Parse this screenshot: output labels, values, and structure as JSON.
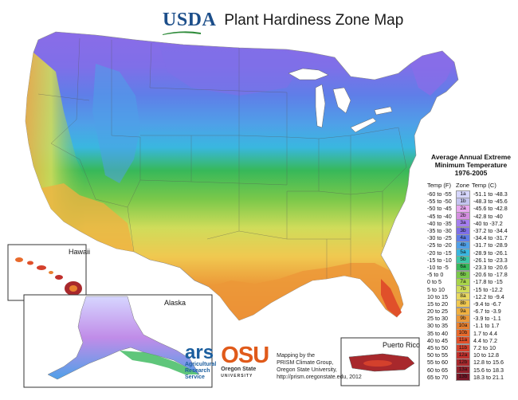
{
  "header": {
    "logo_text": "USDA",
    "title": "Plant Hardiness Zone Map"
  },
  "legend": {
    "title_line1": "Average Annual Extreme",
    "title_line2": "Minimum Temperature",
    "title_line3": "1976-2005",
    "col_f": "Temp (F)",
    "col_zone": "Zone",
    "col_c": "Temp (C)",
    "rows": [
      {
        "f": "-60 to -55",
        "zone": "1a",
        "c": "-51.1 to -48.3",
        "color": "#d6d6ff"
      },
      {
        "f": "-55 to -50",
        "zone": "1b",
        "c": "-48.3 to -45.6",
        "color": "#c4c4f0"
      },
      {
        "f": "-50 to -45",
        "zone": "2a",
        "c": "-45.6 to -42.8",
        "color": "#e8a8f0"
      },
      {
        "f": "-45 to -40",
        "zone": "2b",
        "c": "-42.8 to -40",
        "color": "#d48ee0"
      },
      {
        "f": "-40 to -35",
        "zone": "3a",
        "c": "-40 to -37.2",
        "color": "#a57ef0"
      },
      {
        "f": "-35 to -30",
        "zone": "3b",
        "c": "-37.2 to -34.4",
        "color": "#7f6fe8"
      },
      {
        "f": "-30 to -25",
        "zone": "4a",
        "c": "-34.4 to -31.7",
        "color": "#5f7ee8"
      },
      {
        "f": "-25 to -20",
        "zone": "4b",
        "c": "-31.7 to -28.9",
        "color": "#4fa0e8"
      },
      {
        "f": "-20 to -15",
        "zone": "5a",
        "c": "-28.9 to -26.1",
        "color": "#39b7e0"
      },
      {
        "f": "-15 to -10",
        "zone": "5b",
        "c": "-26.1 to -23.3",
        "color": "#3cc8a8"
      },
      {
        "f": "-10 to -5",
        "zone": "6a",
        "c": "-23.3 to -20.6",
        "color": "#37b85a"
      },
      {
        "f": "-5 to 0",
        "zone": "6b",
        "c": "-20.6 to -17.8",
        "color": "#7ac84a"
      },
      {
        "f": "0 to 5",
        "zone": "7a",
        "c": "-17.8 to -15",
        "color": "#a8d44a"
      },
      {
        "f": "5 to 10",
        "zone": "7b",
        "c": "-15 to -12.2",
        "color": "#d0dc5a"
      },
      {
        "f": "10 to 15",
        "zone": "8a",
        "c": "-12.2 to -9.4",
        "color": "#e8d860"
      },
      {
        "f": "15 to 20",
        "zone": "8b",
        "c": "-9.4 to -6.7",
        "color": "#f0c850"
      },
      {
        "f": "20 to 25",
        "zone": "9a",
        "c": "-6.7 to -3.9",
        "color": "#f0b040"
      },
      {
        "f": "25 to 30",
        "zone": "9b",
        "c": "-3.9 to -1.1",
        "color": "#ec9838"
      },
      {
        "f": "30 to 35",
        "zone": "10a",
        "c": "-1.1 to 1.7",
        "color": "#e88030"
      },
      {
        "f": "35 to 40",
        "zone": "10b",
        "c": "1.7 to 4.4",
        "color": "#e86a2c"
      },
      {
        "f": "40 to 45",
        "zone": "11a",
        "c": "4.4 to 7.2",
        "color": "#e0502a"
      },
      {
        "f": "45 to 50",
        "zone": "11b",
        "c": "7.2 to 10",
        "color": "#d4402c"
      },
      {
        "f": "50 to 55",
        "zone": "12a",
        "c": "10 to 12.8",
        "color": "#c0302c"
      },
      {
        "f": "55 to 60",
        "zone": "12b",
        "c": "12.8 to 15.6",
        "color": "#a8282c"
      },
      {
        "f": "60 to 65",
        "zone": "13a",
        "c": "15.6 to 18.3",
        "color": "#901f2a"
      },
      {
        "f": "65 to 70",
        "zone": "13b",
        "c": "18.3 to 21.1",
        "color": "#781828"
      }
    ]
  },
  "insets": {
    "hawaii": "Hawaii",
    "alaska": "Alaska",
    "puerto_rico": "Puerto Rico"
  },
  "credits": {
    "ars_mark": "ars",
    "ars_line1": "Agricultural",
    "ars_line2": "Research",
    "ars_line3": "Service",
    "osu_mark": "OSU",
    "osu_line1": "Oregon State",
    "osu_line2": "UNIVERSITY",
    "line1": "Mapping by the",
    "line2": "PRISM Climate Group,",
    "line3": "Oregon State University,",
    "line4": "http://prism.oregonstate.edu, 2012"
  }
}
